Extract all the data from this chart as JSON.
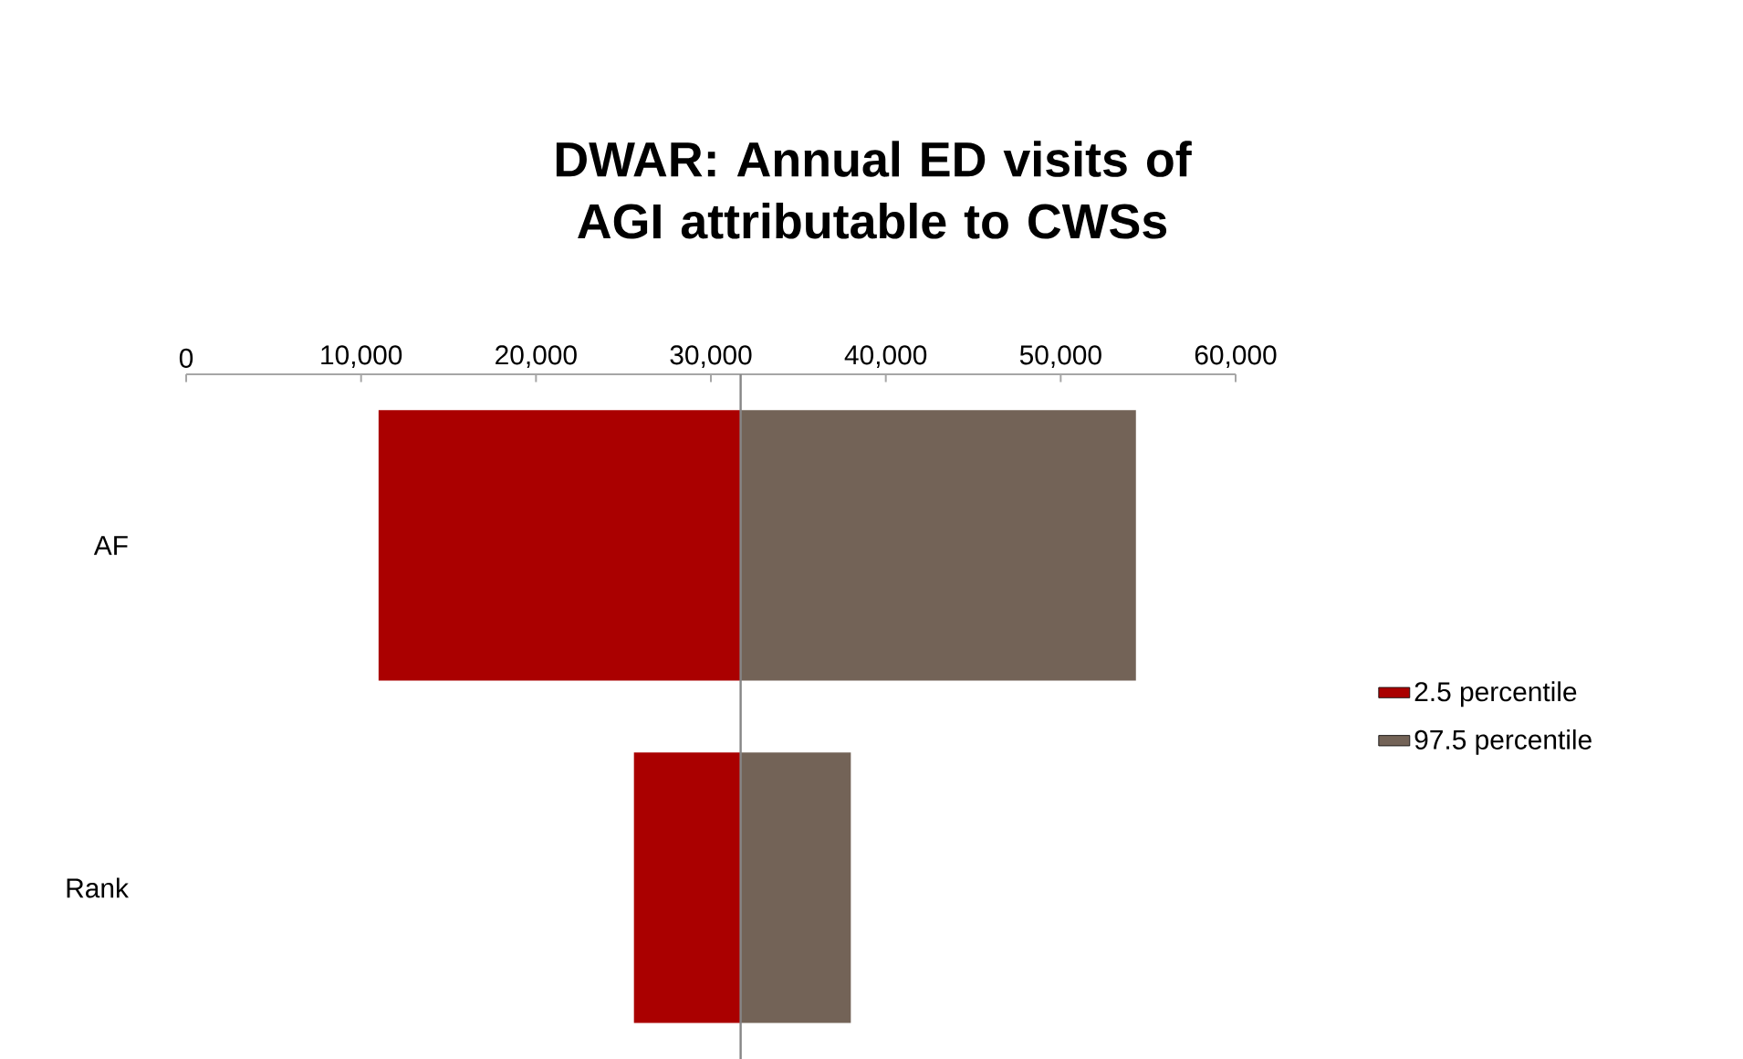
{
  "chart_data": {
    "type": "bar",
    "orientation": "horizontal",
    "title": "DWAR: Annual ED visits of AGI attributable to CWSs",
    "categories": [
      "AF",
      "Rank"
    ],
    "series": [
      {
        "name": "2.5 percentile",
        "color": "#aa0000",
        "base": [
          11000,
          25600
        ],
        "values": [
          20700,
          6100
        ]
      },
      {
        "name": "97.5 percentile",
        "color": "#736357",
        "base": [
          31700,
          31700
        ],
        "values": [
          22600,
          6300
        ]
      }
    ],
    "xlim": [
      0,
      60000
    ],
    "xticks": [
      0,
      {
        "value": 10000,
        "label": "10,000"
      },
      {
        "value": 20000,
        "label": "20,000"
      },
      {
        "value": 30000,
        "label": "30,000"
      },
      {
        "value": 40000,
        "label": "40,000"
      },
      {
        "value": 50000,
        "label": "50,000"
      },
      {
        "value": 60000,
        "label": "60,000"
      }
    ],
    "ref_lines": [
      {
        "axis": "x",
        "value": 31700,
        "color": "#868686"
      }
    ],
    "legend": "right"
  }
}
